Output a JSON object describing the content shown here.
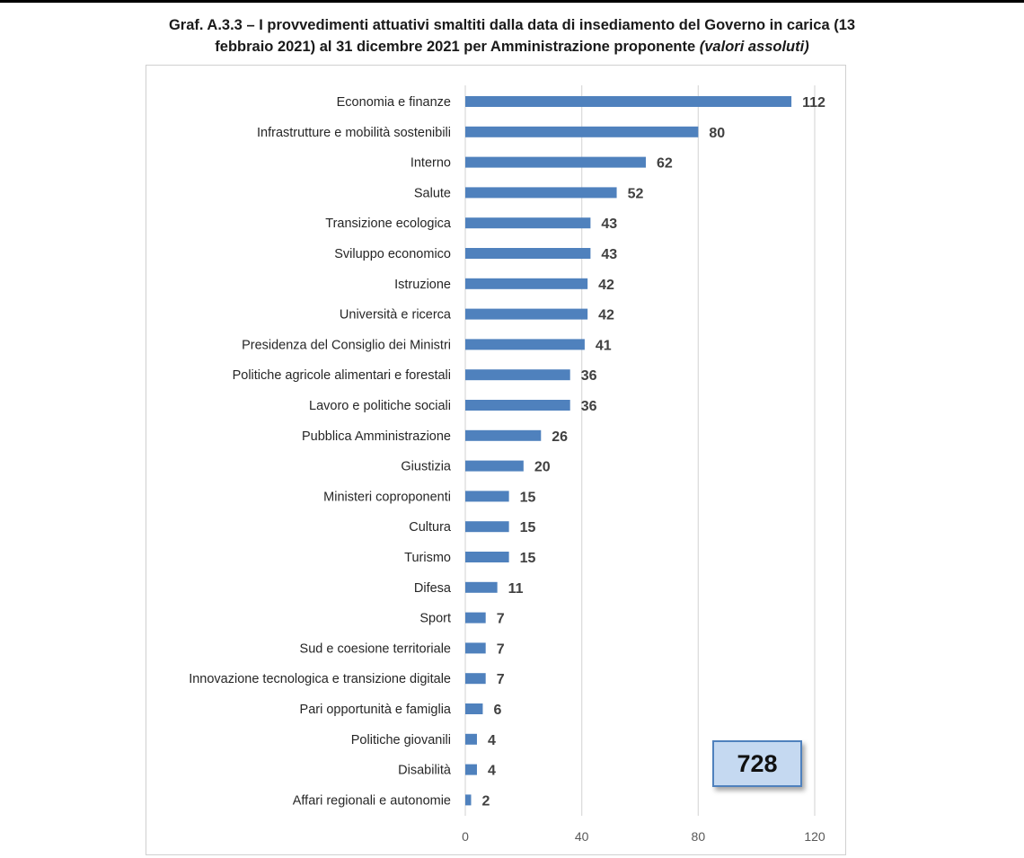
{
  "title": {
    "line1": "Graf. A.3.3 – I provvedimenti attuativi smaltiti dalla data di insediamento del Governo in carica (13",
    "line2_main": "febbraio 2021) al 31 dicembre 2021 per Amministrazione proponente ",
    "line2_italic": "(valori assoluti)"
  },
  "total_label": "728",
  "colors": {
    "bar": "#4f81bd",
    "grid": "#d9d9d9",
    "total_box_fill": "#c5d9f1",
    "total_box_border": "#4f81bd"
  },
  "chart_data": {
    "type": "bar",
    "orientation": "horizontal",
    "categories": [
      "Economia e finanze",
      "Infrastrutture e mobilità sostenibili",
      "Interno",
      "Salute",
      "Transizione ecologica",
      "Sviluppo economico",
      "Istruzione",
      "Università e ricerca",
      "Presidenza del Consiglio dei Ministri",
      "Politiche agricole alimentari e forestali",
      "Lavoro e politiche sociali",
      "Pubblica Amministrazione",
      "Giustizia",
      "Ministeri coproponenti",
      "Cultura",
      "Turismo",
      "Difesa",
      "Sport",
      "Sud e coesione territoriale",
      "Innovazione tecnologica e transizione digitale",
      "Pari opportunità e famiglia",
      "Politiche giovanili",
      "Disabilità",
      "Affari regionali e autonomie"
    ],
    "values": [
      112,
      80,
      62,
      52,
      43,
      43,
      42,
      42,
      41,
      36,
      36,
      26,
      20,
      15,
      15,
      15,
      11,
      7,
      7,
      7,
      6,
      4,
      4,
      2
    ],
    "xlim": [
      0,
      120
    ],
    "xticks": [
      0,
      40,
      80,
      120
    ],
    "xtick_labels": [
      "0",
      "40",
      "80",
      "120"
    ],
    "grid": true,
    "data_labels": true
  }
}
